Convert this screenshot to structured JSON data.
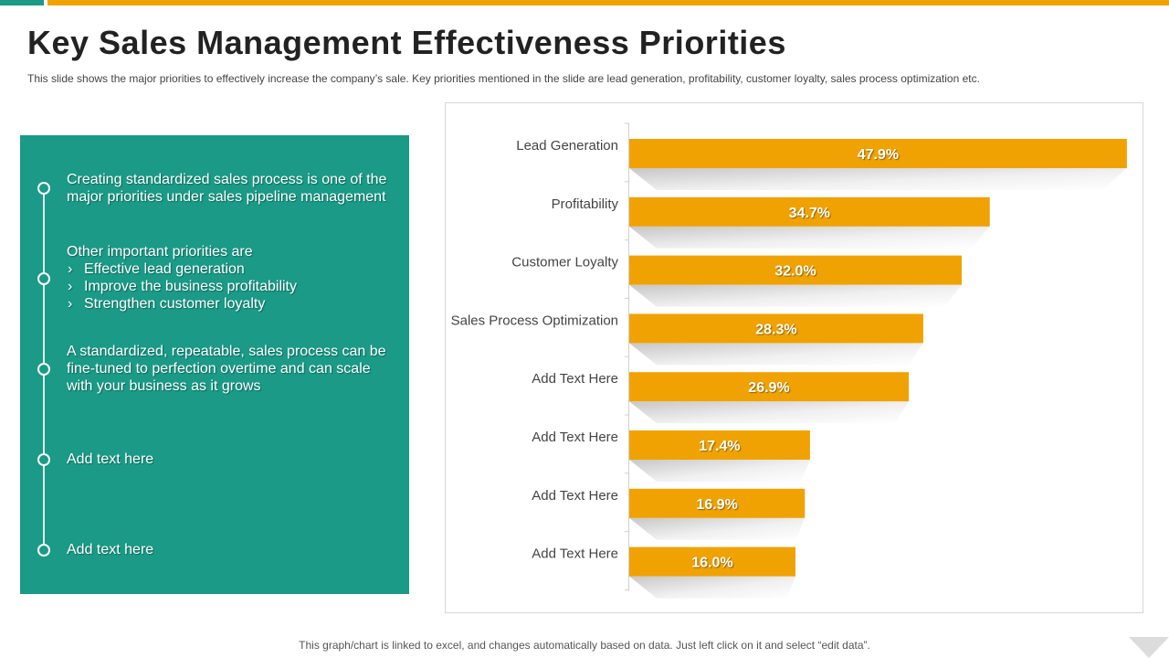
{
  "colors": {
    "teal": "#1a9a87",
    "gold": "#f0a202",
    "bar": "#f0a202",
    "label": "#444444"
  },
  "slide": {
    "title": "Key Sales Management Effectiveness Priorities",
    "subtitle": "This slide shows the major priorities to effectively increase the company’s sale. Key priorities mentioned in the slide are lead generation, profitability, customer loyalty, sales process optimization etc.",
    "footer": "This graph/chart is linked to excel, and changes automatically based on data. Just left click on it and select “edit data”."
  },
  "panel": {
    "item1": "Creating standardized sales process is one of the major priorities under sales pipeline management",
    "item2_intro": "Other important priorities are",
    "item2_bullets": [
      "Effective lead generation",
      "Improve the business profitability",
      "Strengthen customer loyalty"
    ],
    "item3": "A standardized, repeatable, sales process can be fine-tuned to perfection overtime and can scale with your business as it grows",
    "item4": "Add text here",
    "item5": "Add text here"
  },
  "chart_data": {
    "type": "bar",
    "orientation": "horizontal",
    "categories": [
      "Lead Generation",
      "Profitability",
      "Customer Loyalty",
      "Sales Process Optimization",
      "Add Text Here",
      "Add Text Here",
      "Add Text Here",
      "Add Text Here"
    ],
    "values": [
      47.9,
      34.7,
      32.0,
      28.3,
      26.9,
      17.4,
      16.9,
      16.0
    ],
    "data_labels": [
      "47.9%",
      "34.7%",
      "32.0%",
      "28.3%",
      "26.9%",
      "17.4%",
      "16.9%",
      "16.0%"
    ],
    "xlim": [
      0,
      48
    ],
    "unit": "%",
    "title": "",
    "xlabel": "",
    "ylabel": "",
    "grid": false,
    "legend": "none"
  }
}
